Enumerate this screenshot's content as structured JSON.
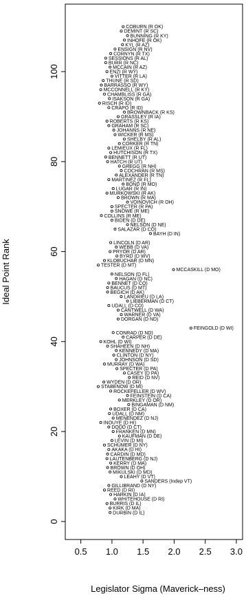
{
  "chart_data": {
    "type": "scatter",
    "xlabel": "Legislator Sigma (Maverick–ness)",
    "ylabel": "Ideal Point Rank",
    "xlim": [
      0.25,
      3.1
    ],
    "ylim": [
      -4,
      115
    ],
    "xticks": [
      0.5,
      1.0,
      1.5,
      2.0,
      2.5,
      3.0
    ],
    "xtick_labels": [
      "0.5",
      "1.0",
      "1.5",
      "2.0",
      "2.5",
      "3.0"
    ],
    "yticks": [
      0,
      20,
      40,
      60,
      80,
      100
    ],
    "ytick_labels": [
      "0",
      "20",
      "40",
      "60",
      "80",
      "100"
    ],
    "grid": false,
    "points": [
      {
        "label": "COBURN (R OK)",
        "x": 1.18,
        "y": 110
      },
      {
        "label": "DEMINT (R SC)",
        "x": 1.15,
        "y": 109
      },
      {
        "label": "BUNNING (R KY)",
        "x": 1.25,
        "y": 108
      },
      {
        "label": "INHOFE (R OK)",
        "x": 1.2,
        "y": 107
      },
      {
        "label": "KYL (R AZ)",
        "x": 1.17,
        "y": 106
      },
      {
        "label": "ENSIGN (R NV)",
        "x": 1.05,
        "y": 105
      },
      {
        "label": "CORNYN (R TX)",
        "x": 0.98,
        "y": 104
      },
      {
        "label": "SESSIONS (R AL)",
        "x": 0.9,
        "y": 103
      },
      {
        "label": "BURR (R NC)",
        "x": 0.9,
        "y": 102
      },
      {
        "label": "MCCAIN (R AZ)",
        "x": 0.97,
        "y": 101
      },
      {
        "label": "ENZI (R WY)",
        "x": 0.92,
        "y": 100
      },
      {
        "label": "VITTER (R LA)",
        "x": 1.0,
        "y": 99
      },
      {
        "label": "THUNE (R SD)",
        "x": 0.86,
        "y": 98
      },
      {
        "label": "BARRASSO (R WY)",
        "x": 0.83,
        "y": 97
      },
      {
        "label": "MCCONNELL (R KY)",
        "x": 0.82,
        "y": 96
      },
      {
        "label": "CHAMBLISS (R GA)",
        "x": 0.88,
        "y": 95
      },
      {
        "label": "ISAKSON (R GA)",
        "x": 0.96,
        "y": 94
      },
      {
        "label": "RISCH (R ID)",
        "x": 0.8,
        "y": 93
      },
      {
        "label": "CRAPO (R ID)",
        "x": 0.95,
        "y": 92
      },
      {
        "label": "BROWNBACK (R KS)",
        "x": 1.2,
        "y": 91
      },
      {
        "label": "GRASSLEY (R IA)",
        "x": 1.1,
        "y": 90
      },
      {
        "label": "ROBERTS (R KS)",
        "x": 0.92,
        "y": 89
      },
      {
        "label": "GRAHAM (R SC)",
        "x": 0.95,
        "y": 88
      },
      {
        "label": "JOHANNS (R NE)",
        "x": 1.03,
        "y": 87
      },
      {
        "label": "WICKER (R MS)",
        "x": 1.05,
        "y": 86
      },
      {
        "label": "SHELBY (R AL)",
        "x": 1.2,
        "y": 85
      },
      {
        "label": "CORKER (R TN)",
        "x": 1.12,
        "y": 84
      },
      {
        "label": "LEMIEUX (R FL)",
        "x": 0.95,
        "y": 83
      },
      {
        "label": "HUTCHISON (R TX)",
        "x": 0.98,
        "y": 82
      },
      {
        "label": "BENNETT (R UT)",
        "x": 0.9,
        "y": 81
      },
      {
        "label": "HATCH (R UT)",
        "x": 0.93,
        "y": 80
      },
      {
        "label": "GREGG (R NH)",
        "x": 1.12,
        "y": 79
      },
      {
        "label": "COCHRAN (R MS)",
        "x": 1.15,
        "y": 78
      },
      {
        "label": "ALEXANDER (R TN)",
        "x": 1.07,
        "y": 77
      },
      {
        "label": "MARTINEZ (R FL)",
        "x": 0.95,
        "y": 76
      },
      {
        "label": "BOND (R MO)",
        "x": 1.18,
        "y": 75
      },
      {
        "label": "LUGAR (R IN)",
        "x": 1.02,
        "y": 74
      },
      {
        "label": "MURKOWSKI (R AK)",
        "x": 0.92,
        "y": 73
      },
      {
        "label": "BROWN (R MA)",
        "x": 1.1,
        "y": 72
      },
      {
        "label": "VOINOVICH (R OH)",
        "x": 1.25,
        "y": 71
      },
      {
        "label": "SPECTER (R PA)",
        "x": 1.0,
        "y": 70
      },
      {
        "label": "SNOWE (R ME)",
        "x": 1.0,
        "y": 69
      },
      {
        "label": "COLLINS (R ME)",
        "x": 0.83,
        "y": 68
      },
      {
        "label": "BIDEN (D DE)",
        "x": 1.0,
        "y": 67
      },
      {
        "label": "NELSON (D NE)",
        "x": 1.25,
        "y": 66
      },
      {
        "label": "SALAZAR (D CO)",
        "x": 1.05,
        "y": 65
      },
      {
        "label": "BAYH (D IN)",
        "x": 1.62,
        "y": 64
      },
      {
        "label": "LINCOLN (D AR)",
        "x": 0.98,
        "y": 62
      },
      {
        "label": "WEBB (D VA)",
        "x": 1.07,
        "y": 61
      },
      {
        "label": "PRYOR (D AR)",
        "x": 0.97,
        "y": 60
      },
      {
        "label": "BYRD (D WV)",
        "x": 1.08,
        "y": 59
      },
      {
        "label": "KLOBUCHAR (D MN)",
        "x": 0.88,
        "y": 58
      },
      {
        "label": "TESTER (D MT)",
        "x": 0.78,
        "y": 57
      },
      {
        "label": "MCCASKILL (D MO)",
        "x": 1.99,
        "y": 56
      },
      {
        "label": "NELSON (D FL)",
        "x": 1.0,
        "y": 55
      },
      {
        "label": "HAGAN (D NC)",
        "x": 1.07,
        "y": 54
      },
      {
        "label": "BENNET (D CO)",
        "x": 0.95,
        "y": 53
      },
      {
        "label": "BAUCUS (D MT)",
        "x": 0.93,
        "y": 52
      },
      {
        "label": "BEGICH (D AK)",
        "x": 0.93,
        "y": 51
      },
      {
        "label": "LANDRIEU (D LA)",
        "x": 1.15,
        "y": 50
      },
      {
        "label": "LIEBERMAN (D CT)",
        "x": 1.25,
        "y": 49
      },
      {
        "label": "UDALL (D CO)",
        "x": 0.95,
        "y": 48
      },
      {
        "label": "CANTWELL (D WA)",
        "x": 1.1,
        "y": 47
      },
      {
        "label": "WARNER (D VA)",
        "x": 1.15,
        "y": 46
      },
      {
        "label": "DORGAN (D ND)",
        "x": 1.1,
        "y": 45
      },
      {
        "label": "FEINGOLD (D WI)",
        "x": 2.27,
        "y": 43
      },
      {
        "label": "CONRAD (D ND)",
        "x": 1.02,
        "y": 42
      },
      {
        "label": "CARPER (D DE)",
        "x": 1.18,
        "y": 41
      },
      {
        "label": "KOHL (D WI)",
        "x": 0.82,
        "y": 40
      },
      {
        "label": "SHAHEEN (D NH)",
        "x": 0.93,
        "y": 39
      },
      {
        "label": "KENNEDY (D MA)",
        "x": 1.07,
        "y": 38
      },
      {
        "label": "CLINTON (D NY)",
        "x": 1.03,
        "y": 37
      },
      {
        "label": "JOHNSON (D SD)",
        "x": 1.07,
        "y": 36
      },
      {
        "label": "MURRAY (D WA)",
        "x": 0.88,
        "y": 35
      },
      {
        "label": "SPECTER (D PA)",
        "x": 1.08,
        "y": 34
      },
      {
        "label": "CASEY (D PA)",
        "x": 1.2,
        "y": 33
      },
      {
        "label": "REID (D NV)",
        "x": 1.28,
        "y": 32
      },
      {
        "label": "WYDEN (D OR)",
        "x": 0.87,
        "y": 31
      },
      {
        "label": "STABENOW (D MI)",
        "x": 0.78,
        "y": 30
      },
      {
        "label": "ROCKEFELLER (D WV)",
        "x": 0.98,
        "y": 29
      },
      {
        "label": "FEINSTEIN (D CA)",
        "x": 1.25,
        "y": 28
      },
      {
        "label": "MERKLEY (D OR)",
        "x": 1.12,
        "y": 27
      },
      {
        "label": "BINGAMAN (D NM)",
        "x": 1.27,
        "y": 26
      },
      {
        "label": "BOXER (D CA)",
        "x": 0.98,
        "y": 25
      },
      {
        "label": "UDALL (D NM)",
        "x": 0.96,
        "y": 24
      },
      {
        "label": "MENENDEZ (D NJ)",
        "x": 1.02,
        "y": 23
      },
      {
        "label": "INOUYE (D HI)",
        "x": 0.82,
        "y": 22
      },
      {
        "label": "DODD (D CT)",
        "x": 0.95,
        "y": 21
      },
      {
        "label": "FRANKEN (D MN)",
        "x": 1.02,
        "y": 20
      },
      {
        "label": "KAUFMAN (D DE)",
        "x": 1.12,
        "y": 19
      },
      {
        "label": "LEVIN (D MI)",
        "x": 1.0,
        "y": 18
      },
      {
        "label": "SCHUMER (D NY)",
        "x": 0.88,
        "y": 17
      },
      {
        "label": "AKAKA (D HI)",
        "x": 0.95,
        "y": 16
      },
      {
        "label": "CARDIN (D MD)",
        "x": 0.93,
        "y": 15
      },
      {
        "label": "LAUTENBERG (D NJ)",
        "x": 0.92,
        "y": 14
      },
      {
        "label": "KERRY (D MA)",
        "x": 0.98,
        "y": 13
      },
      {
        "label": "BROWN (D OH)",
        "x": 0.93,
        "y": 12
      },
      {
        "label": "MIKULSKI (D MD)",
        "x": 0.97,
        "y": 11
      },
      {
        "label": "LEAHY (D VT)",
        "x": 1.15,
        "y": 10
      },
      {
        "label": "SANDERS (Indep VT)",
        "x": 1.48,
        "y": 9
      },
      {
        "label": "GILLIBRAND (D NY)",
        "x": 0.95,
        "y": 8
      },
      {
        "label": "REED (D RI)",
        "x": 0.88,
        "y": 7
      },
      {
        "label": "HARKIN (D IA)",
        "x": 0.98,
        "y": 6
      },
      {
        "label": "WHITEHOUSE (D RI)",
        "x": 1.05,
        "y": 5
      },
      {
        "label": "BURRIS (D IL)",
        "x": 0.92,
        "y": 4
      },
      {
        "label": "KIRK (D MA)",
        "x": 0.97,
        "y": 3
      },
      {
        "label": "DURBIN (D IL)",
        "x": 0.97,
        "y": 2
      }
    ]
  }
}
